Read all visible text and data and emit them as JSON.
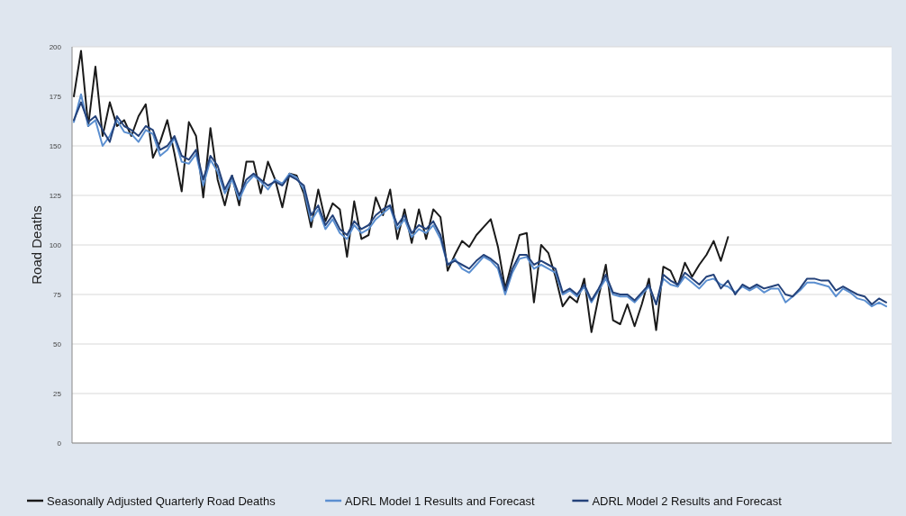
{
  "chart_data": {
    "type": "line",
    "ylabel": "Road Deaths",
    "categories": [
      null,
      null,
      null,
      null,
      null,
      null,
      null,
      null,
      null,
      null,
      null,
      null,
      null,
      null,
      null,
      null,
      null,
      null,
      null,
      null,
      null,
      null,
      null,
      null,
      null,
      null,
      null,
      null,
      null,
      null,
      null,
      null,
      null,
      null,
      null,
      null,
      null,
      null,
      null,
      null,
      null,
      null,
      null,
      null,
      null,
      null,
      null,
      null,
      null,
      null,
      null,
      null,
      null,
      null,
      null,
      null,
      null,
      null,
      null,
      null,
      null,
      null,
      null,
      null,
      null,
      null,
      null,
      null,
      null,
      null,
      null,
      null,
      null,
      null,
      null,
      null,
      null,
      null,
      null,
      null,
      null,
      null,
      null,
      null,
      null,
      null,
      null,
      null,
      null,
      null,
      null,
      null,
      null,
      null,
      null,
      null,
      null,
      null,
      null,
      null,
      null,
      null,
      null,
      null,
      null,
      null,
      null,
      null,
      null,
      null,
      null,
      null,
      null,
      null
    ],
    "ylim": [
      0,
      200
    ],
    "yticks": [
      0,
      25,
      50,
      75,
      100,
      125,
      150,
      175,
      200
    ],
    "grid": "y",
    "legend": "bottom",
    "line_style": "solid",
    "marker": "none",
    "series": [
      {
        "name": "Seasonally Adjusted Quarterly Road Deaths",
        "color": "#1a1a1a",
        "values": [
          175,
          198,
          160,
          190,
          155,
          172,
          160,
          163,
          155,
          165,
          171,
          144,
          152,
          163,
          146,
          127,
          162,
          155,
          124,
          159,
          133,
          120,
          135,
          120,
          142,
          142,
          126,
          142,
          133,
          119,
          136,
          135,
          126,
          109,
          128,
          112,
          121,
          118,
          94,
          122,
          103,
          105,
          124,
          115,
          128,
          103,
          118,
          101,
          118,
          103,
          118,
          114,
          87,
          95,
          102,
          99,
          105,
          109,
          113,
          99,
          78,
          92,
          105,
          106,
          71,
          100,
          96,
          84,
          69,
          74,
          71,
          83,
          56,
          74,
          90,
          62,
          60,
          70,
          59,
          70,
          83,
          57,
          89,
          87,
          79,
          91,
          84,
          90,
          95,
          102,
          92,
          104,
          null,
          null,
          null,
          null,
          null,
          null,
          null,
          null,
          null,
          null,
          null,
          null,
          null,
          null,
          null,
          null,
          null,
          null,
          null,
          null,
          null,
          null
        ]
      },
      {
        "name": "ADRL Model 1 Results and Forecast",
        "color": "#5b8fd0",
        "values": [
          162,
          176,
          160,
          163,
          150,
          155,
          163,
          157,
          156,
          152,
          158,
          156,
          145,
          148,
          154,
          142,
          141,
          146,
          130,
          143,
          137,
          126,
          133,
          123,
          131,
          135,
          132,
          128,
          133,
          131,
          136,
          134,
          128,
          112,
          118,
          108,
          113,
          106,
          103,
          110,
          106,
          108,
          113,
          116,
          119,
          108,
          113,
          104,
          108,
          106,
          110,
          103,
          90,
          93,
          88,
          86,
          90,
          94,
          92,
          88,
          75,
          86,
          93,
          94,
          88,
          90,
          88,
          86,
          75,
          77,
          74,
          79,
          71,
          77,
          83,
          75,
          74,
          74,
          71,
          75,
          79,
          70,
          83,
          80,
          79,
          84,
          81,
          78,
          82,
          83,
          80,
          79,
          76,
          79,
          77,
          79,
          76,
          78,
          78,
          71,
          74,
          77,
          81,
          81,
          80,
          79,
          74,
          78,
          76,
          73,
          72,
          69,
          71,
          69
        ]
      },
      {
        "name": "ADRL Model 2 Results and Forecast",
        "color": "#24427a",
        "values": [
          163,
          172,
          162,
          165,
          158,
          152,
          165,
          160,
          158,
          155,
          160,
          158,
          148,
          150,
          155,
          145,
          143,
          148,
          133,
          145,
          140,
          128,
          135,
          125,
          133,
          136,
          133,
          130,
          132,
          130,
          135,
          133,
          130,
          115,
          120,
          110,
          115,
          108,
          105,
          112,
          108,
          110,
          115,
          118,
          120,
          110,
          115,
          106,
          110,
          108,
          112,
          105,
          90,
          92,
          90,
          88,
          92,
          95,
          93,
          90,
          77,
          88,
          95,
          95,
          90,
          92,
          90,
          88,
          76,
          78,
          75,
          80,
          72,
          78,
          85,
          76,
          75,
          75,
          72,
          76,
          80,
          70,
          85,
          82,
          80,
          86,
          83,
          80,
          84,
          85,
          78,
          82,
          75,
          80,
          78,
          80,
          78,
          79,
          80,
          75,
          74,
          78,
          83,
          83,
          82,
          82,
          77,
          79,
          77,
          75,
          74,
          70,
          73,
          71
        ]
      }
    ]
  }
}
